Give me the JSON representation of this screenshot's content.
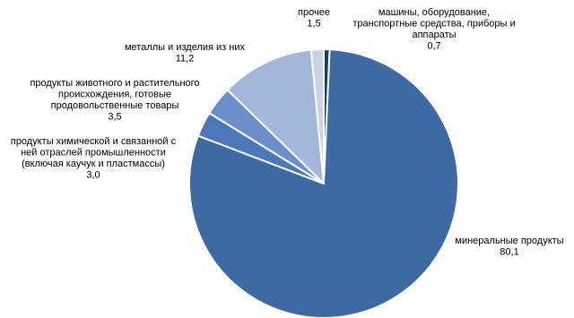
{
  "chart_data": {
    "type": "pie",
    "title": "",
    "slices": [
      {
        "label": "машины, оборудование, транспортные средства, приборы и аппараты",
        "label_lines": [
          "машины, оборудование,",
          "транспортные средства, приборы и",
          "аппараты"
        ],
        "value": 0.7,
        "value_label": "0,7",
        "color": "#1f3864"
      },
      {
        "label": "минеральные продукты",
        "label_lines": [
          "минеральные продукты"
        ],
        "value": 80.1,
        "value_label": "80,1",
        "color": "#3d6aa3"
      },
      {
        "label": "продукты химической и связанной с ней отраслей промышленности (включая каучук и пластмассы)",
        "label_lines": [
          "продукты химической и связанной с",
          "ней отраслей промышленности",
          "(включая каучук и пластмассы)"
        ],
        "value": 3.0,
        "value_label": "3,0",
        "color": "#4a78b8"
      },
      {
        "label": "продукты животного и растительного происхождения, готовые продовольственные товары",
        "label_lines": [
          "продукты животного и растительного",
          "происхождения, готовые",
          "продовольственные товары"
        ],
        "value": 3.5,
        "value_label": "3,5",
        "color": "#6b8fcb"
      },
      {
        "label": "металлы и изделия из них",
        "label_lines": [
          "металлы и изделия из них"
        ],
        "value": 11.2,
        "value_label": "11,2",
        "color": "#a3b7db"
      },
      {
        "label": "прочее",
        "label_lines": [
          "прочее"
        ],
        "value": 1.5,
        "value_label": "1,5",
        "color": "#c9d3e8"
      }
    ]
  }
}
